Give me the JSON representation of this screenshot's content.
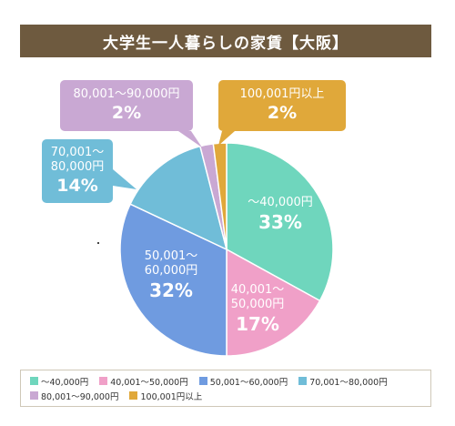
{
  "chart_data": {
    "type": "pie",
    "title": "大学生一人暮らしの家賃【大阪】",
    "slices": [
      {
        "label": "～40,000円",
        "label_lines": [
          "～40,000円"
        ],
        "value": 33,
        "percent_text": "33%",
        "color": "#6fd6bd"
      },
      {
        "label": "40,001～50,000円",
        "label_lines": [
          "40,001～",
          "50,000円"
        ],
        "value": 17,
        "percent_text": "17%",
        "color": "#f0a0c8"
      },
      {
        "label": "50,001～60,000円",
        "label_lines": [
          "50,001～",
          "60,000円"
        ],
        "value": 32,
        "percent_text": "32%",
        "color": "#6f9be0"
      },
      {
        "label": "70,001～80,000円",
        "label_lines": [
          "70,001～",
          "80,000円"
        ],
        "value": 14,
        "percent_text": "14%",
        "color": "#70bdd8"
      },
      {
        "label": "80,001～90,000円",
        "label_lines": [
          "80,001～90,000円"
        ],
        "value": 2,
        "percent_text": "2%",
        "color": "#c9a8d3"
      },
      {
        "label": "100,001円以上",
        "label_lines": [
          "100,001円以上"
        ],
        "value": 2,
        "percent_text": "2%",
        "color": "#e0a83a"
      }
    ],
    "legend": [
      {
        "label": "～40,000円",
        "color": "#6fd6bd"
      },
      {
        "label": "40,001～50,000円",
        "color": "#f0a0c8"
      },
      {
        "label": "50,001～60,000円",
        "color": "#6f9be0"
      },
      {
        "label": "70,001～80,000円",
        "color": "#70bdd8"
      },
      {
        "label": "80,001～90,000円",
        "color": "#c9a8d3"
      },
      {
        "label": "100,001円以上",
        "color": "#e0a83a"
      }
    ],
    "legend_position": "bottom"
  },
  "colors": {
    "title_bar": "#6e5a3f",
    "legend_border": "#cfc8b8"
  }
}
